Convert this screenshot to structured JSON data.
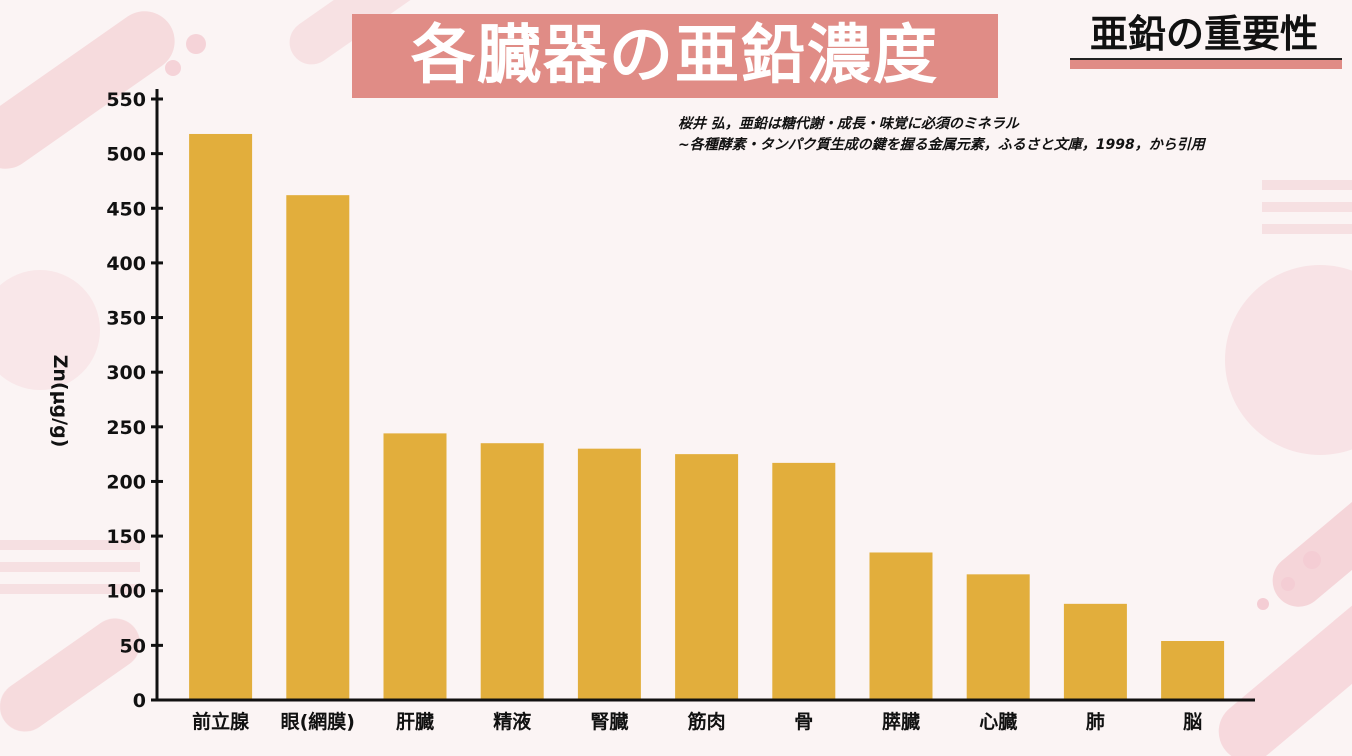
{
  "header": {
    "title": "各臓器の亜鉛濃度",
    "corner_label": "亜鉛の重要性"
  },
  "citation": {
    "line1": "桜井 弘，亜鉛は糖代謝・成長・味覚に必須のミネラル",
    "line2": "~各種酵素・タンパク質生成の鍵を握る金属元素，ふるさと文庫，1998，から引用"
  },
  "colors": {
    "bar": "#e2ae3c",
    "accent": "#e08c86",
    "axis": "#111111",
    "background": "#fbf4f4"
  },
  "chart_data": {
    "type": "bar",
    "title": "各臓器の亜鉛濃度",
    "xlabel": "",
    "ylabel": "Zn(μg/g)",
    "categories": [
      "前立腺",
      "眼(網膜)",
      "肝臓",
      "精液",
      "腎臓",
      "筋肉",
      "骨",
      "膵臓",
      "心臓",
      "肺",
      "脳"
    ],
    "values": [
      518,
      462,
      244,
      235,
      230,
      225,
      217,
      135,
      115,
      88,
      54
    ],
    "ylim": [
      0,
      550
    ],
    "yticks": [
      0,
      50,
      100,
      150,
      200,
      250,
      300,
      350,
      400,
      450,
      500,
      550
    ],
    "grid": false,
    "legend": "none"
  }
}
